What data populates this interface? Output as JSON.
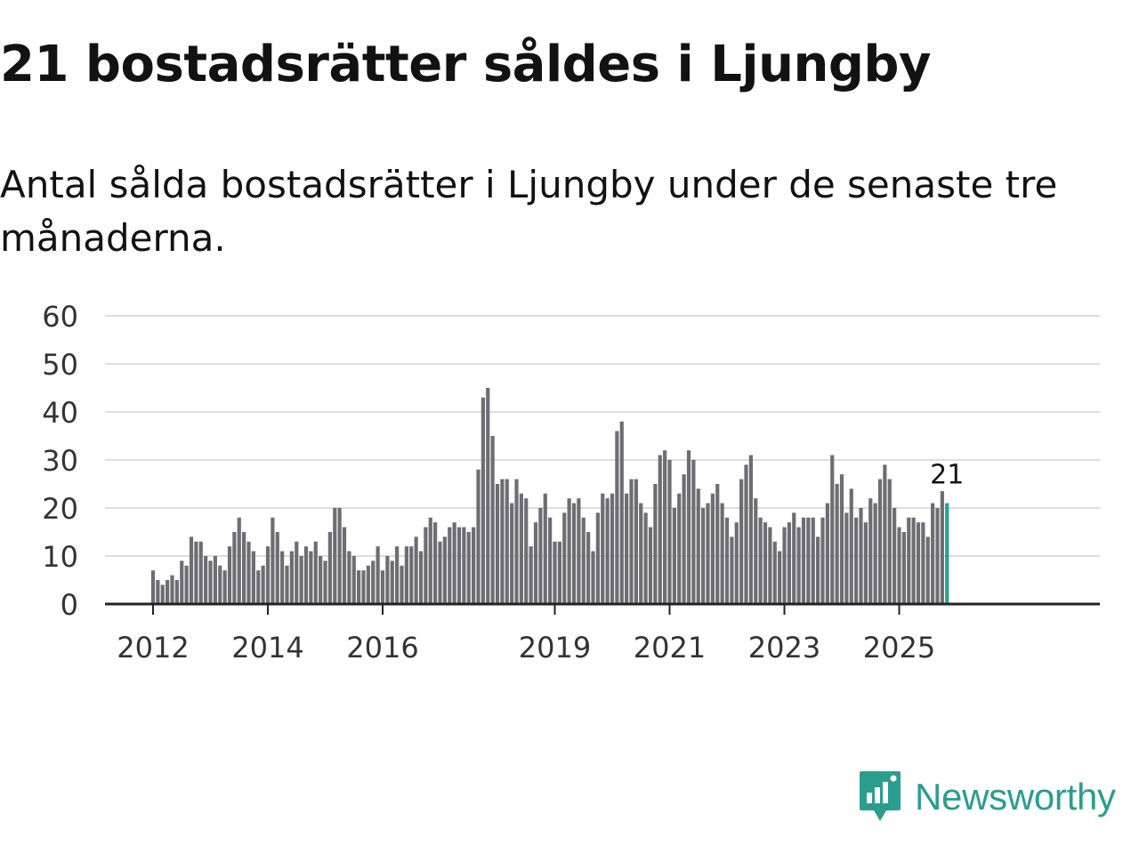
{
  "title": "21 bostadsrätter såldes i Ljungby",
  "subtitle": "Antal sålda bostadsrätter i Ljungby under de senaste tre månaderna.",
  "brand": {
    "name": "Newsworthy",
    "icon": "newsworthy-logo-icon",
    "color": "#2a9d8f"
  },
  "chart_data": {
    "type": "bar",
    "title": "21 bostadsrätter såldes i Ljungby",
    "xlabel": "",
    "ylabel": "",
    "ylim": [
      0,
      60
    ],
    "yticks": [
      0,
      10,
      20,
      30,
      40,
      50,
      60
    ],
    "xticks": [
      {
        "label": "2012",
        "year": 2012
      },
      {
        "label": "2014",
        "year": 2014
      },
      {
        "label": "2016",
        "year": 2016
      },
      {
        "label": "2019",
        "year": 2019
      },
      {
        "label": "2021",
        "year": 2021
      },
      {
        "label": "2023",
        "year": 2023
      },
      {
        "label": "2025",
        "year": 2025
      }
    ],
    "start": "2012-01",
    "bar_color": "#6e6d73",
    "highlight_color": "#2a9d8f",
    "annotation": {
      "label": "21",
      "value": 21
    },
    "values": [
      7,
      5,
      4,
      5,
      6,
      5,
      9,
      8,
      14,
      13,
      13,
      10,
      9,
      10,
      8,
      7,
      12,
      15,
      18,
      15,
      13,
      11,
      7,
      8,
      12,
      18,
      15,
      11,
      8,
      11,
      13,
      10,
      12,
      11,
      13,
      10,
      9,
      15,
      20,
      20,
      16,
      11,
      10,
      7,
      7,
      8,
      9,
      12,
      7,
      10,
      9,
      12,
      8,
      12,
      12,
      14,
      11,
      16,
      18,
      17,
      13,
      14,
      16,
      17,
      16,
      16,
      15,
      16,
      28,
      43,
      45,
      35,
      25,
      26,
      26,
      21,
      26,
      23,
      22,
      12,
      17,
      20,
      23,
      18,
      13,
      13,
      19,
      22,
      21,
      22,
      18,
      15,
      11,
      19,
      23,
      22,
      23,
      36,
      38,
      23,
      26,
      26,
      21,
      19,
      16,
      25,
      31,
      32,
      30,
      20,
      23,
      27,
      32,
      30,
      24,
      20,
      21,
      23,
      25,
      21,
      18,
      14,
      17,
      26,
      29,
      31,
      22,
      18,
      17,
      16,
      13,
      11,
      16,
      17,
      19,
      16,
      18,
      18,
      18,
      14,
      18,
      21,
      31,
      25,
      27,
      19,
      24,
      18,
      20,
      17,
      22,
      21,
      26,
      29,
      26,
      20,
      16,
      15,
      18,
      18,
      17,
      17,
      14,
      21,
      20,
      23.5,
      21
    ]
  }
}
